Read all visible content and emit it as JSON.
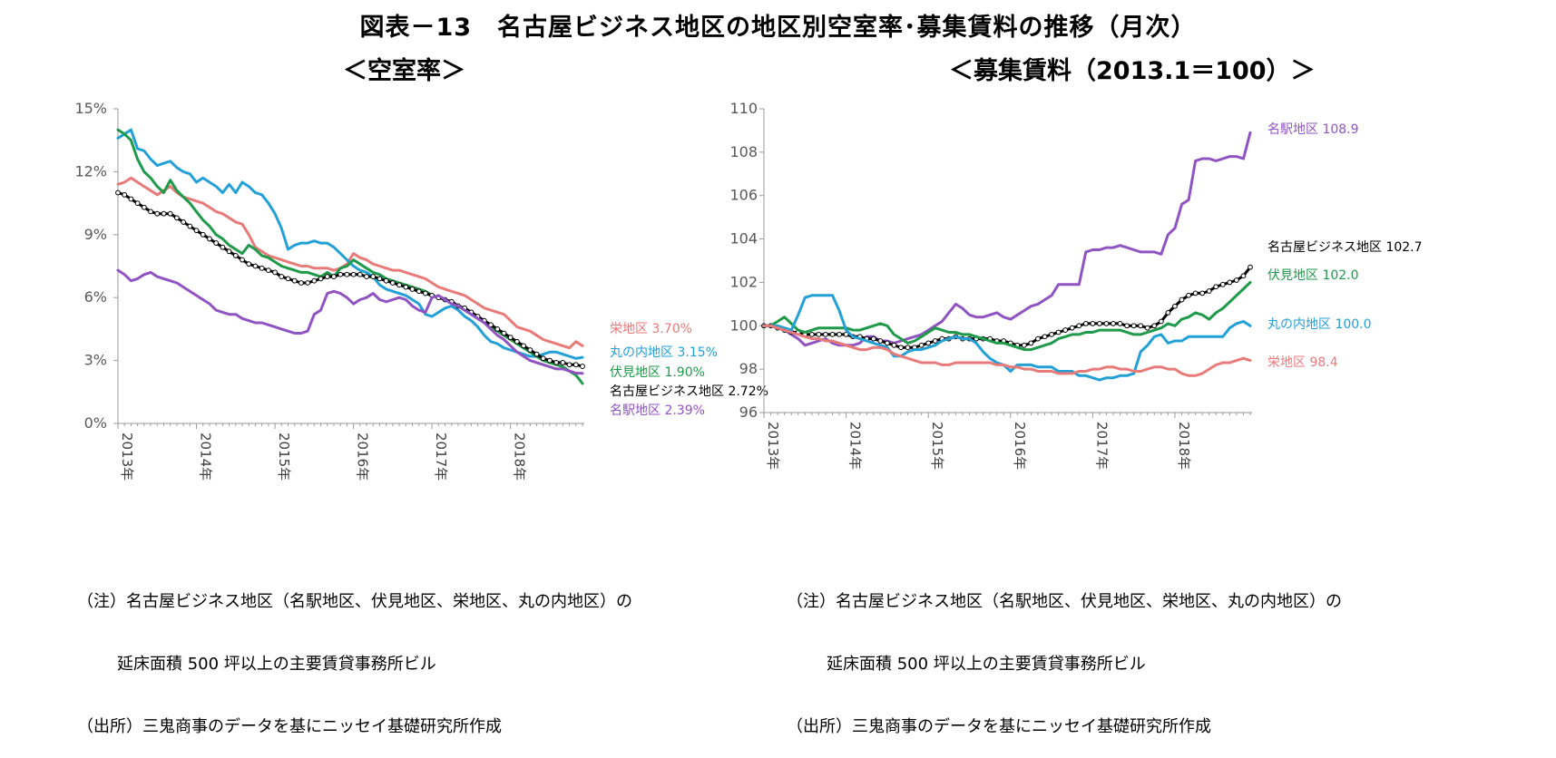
{
  "title": "図表－13　名古屋ビジネス地区の地区別空室率･募集賃料の推移（月次）",
  "left_subtitle": "＜空室率＞",
  "right_subtitle": "＜募集賃料（2013.1＝100）＞",
  "notes": {
    "line1": "（注）名古屋ビジネス地区（名駅地区、伏見地区、栄地区、丸の内地区）の",
    "line2": "延床面積 500 坪以上の主要賃貸事務所ビル",
    "line3": "（出所）三鬼商事のデータを基にニッセイ基礎研究所作成"
  },
  "chart_data": [
    {
      "type": "line",
      "title": "＜空室率＞",
      "ylim": [
        0,
        15
      ],
      "yticks": [
        "0%",
        "3%",
        "6%",
        "9%",
        "12%",
        "15%"
      ],
      "ytick_values": [
        0,
        3,
        6,
        9,
        12,
        15
      ],
      "xticks": [
        "2013年",
        "2014年",
        "2015年",
        "2016年",
        "2017年",
        "2018年"
      ],
      "n_months": 72,
      "series": [
        {
          "name": "栄地区",
          "end_label": "栄地区 3.70%",
          "color": "#e87a7a",
          "values": [
            11.4,
            11.5,
            11.7,
            11.5,
            11.3,
            11.1,
            10.9,
            11.1,
            11.3,
            11.0,
            10.8,
            10.7,
            10.6,
            10.5,
            10.3,
            10.1,
            10.0,
            9.8,
            9.6,
            9.5,
            9.0,
            8.4,
            8.2,
            8.0,
            7.9,
            7.8,
            7.7,
            7.6,
            7.5,
            7.5,
            7.4,
            7.4,
            7.4,
            7.3,
            7.4,
            7.6,
            8.1,
            7.9,
            7.8,
            7.6,
            7.5,
            7.4,
            7.3,
            7.3,
            7.2,
            7.1,
            7.0,
            6.9,
            6.7,
            6.5,
            6.4,
            6.3,
            6.2,
            6.1,
            5.9,
            5.7,
            5.5,
            5.4,
            5.3,
            5.2,
            4.9,
            4.6,
            4.5,
            4.4,
            4.2,
            4.0,
            3.9,
            3.8,
            3.7,
            3.6,
            3.9,
            3.7
          ]
        },
        {
          "name": "丸の内地区",
          "end_label": "丸の内地区 3.15%",
          "color": "#23a0d6",
          "values": [
            13.6,
            13.8,
            14.0,
            13.1,
            13.0,
            12.6,
            12.3,
            12.4,
            12.5,
            12.2,
            12.0,
            11.9,
            11.5,
            11.7,
            11.5,
            11.3,
            11.0,
            11.4,
            11.0,
            11.5,
            11.3,
            11.0,
            10.9,
            10.5,
            10.0,
            9.3,
            8.3,
            8.5,
            8.6,
            8.6,
            8.7,
            8.6,
            8.6,
            8.4,
            8.1,
            7.8,
            7.5,
            7.3,
            7.2,
            7.0,
            6.6,
            6.4,
            6.3,
            6.2,
            6.1,
            5.9,
            5.7,
            5.2,
            5.1,
            5.3,
            5.5,
            5.6,
            5.4,
            5.1,
            4.9,
            4.6,
            4.2,
            3.9,
            3.8,
            3.6,
            3.5,
            3.4,
            3.3,
            3.2,
            3.2,
            3.3,
            3.4,
            3.4,
            3.3,
            3.2,
            3.1,
            3.15
          ]
        },
        {
          "name": "伏見地区",
          "end_label": "伏見地区 1.90%",
          "color": "#1e9a4a",
          "values": [
            14.0,
            13.8,
            13.5,
            12.6,
            12.0,
            11.7,
            11.3,
            11.0,
            11.6,
            11.1,
            10.8,
            10.5,
            10.1,
            9.7,
            9.4,
            9.0,
            8.8,
            8.5,
            8.3,
            8.1,
            8.5,
            8.3,
            8.0,
            7.9,
            7.7,
            7.5,
            7.4,
            7.3,
            7.2,
            7.2,
            7.1,
            7.0,
            7.2,
            7.0,
            7.4,
            7.5,
            7.8,
            7.6,
            7.4,
            7.2,
            7.1,
            6.9,
            6.8,
            6.7,
            6.6,
            6.5,
            6.4,
            6.3,
            6.1,
            6.0,
            5.9,
            5.8,
            5.6,
            5.4,
            5.2,
            5.0,
            4.8,
            4.6,
            4.4,
            4.2,
            4.0,
            3.8,
            3.6,
            3.4,
            3.2,
            3.0,
            2.9,
            2.8,
            2.7,
            2.5,
            2.3,
            1.9
          ]
        },
        {
          "name": "名古屋ビジネス地区",
          "end_label": "名古屋ビジネス地区 2.72%",
          "color": "#000000",
          "values": [
            11.0,
            10.9,
            10.7,
            10.5,
            10.3,
            10.1,
            10.0,
            10.0,
            10.0,
            9.8,
            9.6,
            9.4,
            9.2,
            9.0,
            8.8,
            8.6,
            8.4,
            8.2,
            8.0,
            7.8,
            7.6,
            7.5,
            7.4,
            7.3,
            7.2,
            7.0,
            6.9,
            6.8,
            6.7,
            6.7,
            6.8,
            6.9,
            7.0,
            7.0,
            7.1,
            7.1,
            7.1,
            7.1,
            7.0,
            7.0,
            6.9,
            6.8,
            6.7,
            6.6,
            6.5,
            6.4,
            6.3,
            6.2,
            6.1,
            6.0,
            5.9,
            5.8,
            5.6,
            5.5,
            5.3,
            5.1,
            4.9,
            4.7,
            4.5,
            4.3,
            4.1,
            3.9,
            3.7,
            3.5,
            3.3,
            3.1,
            3.0,
            2.9,
            2.9,
            2.8,
            2.8,
            2.72
          ]
        },
        {
          "name": "名駅地区",
          "end_label": "名駅地区 2.39%",
          "color": "#9053c2",
          "values": [
            7.3,
            7.1,
            6.8,
            6.9,
            7.1,
            7.2,
            7.0,
            6.9,
            6.8,
            6.7,
            6.5,
            6.3,
            6.1,
            5.9,
            5.7,
            5.4,
            5.3,
            5.2,
            5.2,
            5.0,
            4.9,
            4.8,
            4.8,
            4.7,
            4.6,
            4.5,
            4.4,
            4.3,
            4.3,
            4.4,
            5.2,
            5.4,
            6.2,
            6.3,
            6.2,
            6.0,
            5.7,
            5.9,
            6.0,
            6.2,
            5.9,
            5.8,
            5.9,
            6.0,
            5.9,
            5.6,
            5.4,
            5.3,
            6.0,
            6.1,
            5.9,
            5.7,
            5.6,
            5.4,
            5.2,
            5.0,
            4.8,
            4.5,
            4.2,
            4.0,
            3.7,
            3.4,
            3.2,
            3.0,
            2.9,
            2.8,
            2.7,
            2.6,
            2.6,
            2.5,
            2.4,
            2.39
          ]
        }
      ]
    },
    {
      "type": "line",
      "title": "＜募集賃料（2013.1＝100）＞",
      "ylim": [
        96,
        110
      ],
      "yticks": [
        "96",
        "98",
        "100",
        "102",
        "104",
        "106",
        "108",
        "110"
      ],
      "ytick_values": [
        96,
        98,
        100,
        102,
        104,
        106,
        108,
        110
      ],
      "xticks": [
        "2013年",
        "2014年",
        "2015年",
        "2016年",
        "2017年",
        "2018年"
      ],
      "n_months": 72,
      "series": [
        {
          "name": "名駅地区",
          "end_label": "名駅地区 108.9",
          "color": "#9053c2",
          "values": [
            100.0,
            100.0,
            99.9,
            99.8,
            99.6,
            99.4,
            99.1,
            99.2,
            99.3,
            99.4,
            99.2,
            99.1,
            99.1,
            99.1,
            99.2,
            99.5,
            99.5,
            99.3,
            99.3,
            99.2,
            99.3,
            99.4,
            99.5,
            99.6,
            99.8,
            100.0,
            100.2,
            100.6,
            101.0,
            100.8,
            100.5,
            100.4,
            100.4,
            100.5,
            100.6,
            100.4,
            100.3,
            100.5,
            100.7,
            100.9,
            101.0,
            101.2,
            101.4,
            101.9,
            101.9,
            101.9,
            101.9,
            103.4,
            103.5,
            103.5,
            103.6,
            103.6,
            103.7,
            103.6,
            103.5,
            103.4,
            103.4,
            103.4,
            103.3,
            104.2,
            104.5,
            105.6,
            105.8,
            107.6,
            107.7,
            107.7,
            107.6,
            107.7,
            107.8,
            107.8,
            107.7,
            108.9
          ]
        },
        {
          "name": "名古屋ビジネス地区",
          "end_label": "名古屋ビジネス地区 102.7",
          "color": "#000000",
          "values": [
            100.0,
            100.0,
            99.9,
            99.8,
            99.7,
            99.7,
            99.6,
            99.6,
            99.6,
            99.6,
            99.6,
            99.6,
            99.6,
            99.5,
            99.5,
            99.4,
            99.4,
            99.3,
            99.2,
            99.1,
            99.0,
            99.0,
            99.0,
            99.1,
            99.2,
            99.3,
            99.4,
            99.4,
            99.5,
            99.4,
            99.4,
            99.4,
            99.4,
            99.4,
            99.3,
            99.3,
            99.2,
            99.1,
            99.1,
            99.2,
            99.4,
            99.5,
            99.6,
            99.7,
            99.8,
            99.9,
            100.0,
            100.1,
            100.1,
            100.1,
            100.1,
            100.1,
            100.1,
            100.0,
            100.0,
            100.0,
            99.9,
            100.0,
            100.2,
            100.6,
            100.9,
            101.2,
            101.4,
            101.5,
            101.5,
            101.6,
            101.8,
            101.9,
            102.0,
            102.1,
            102.3,
            102.7
          ]
        },
        {
          "name": "伏見地区",
          "end_label": "伏見地区 102.0",
          "color": "#1e9a4a",
          "values": [
            100.0,
            100.0,
            100.2,
            100.4,
            100.1,
            99.8,
            99.7,
            99.8,
            99.9,
            99.9,
            99.9,
            99.9,
            99.9,
            99.8,
            99.8,
            99.9,
            100.0,
            100.1,
            100.0,
            99.6,
            99.4,
            99.2,
            99.3,
            99.5,
            99.7,
            99.9,
            99.8,
            99.7,
            99.7,
            99.6,
            99.6,
            99.5,
            99.4,
            99.3,
            99.2,
            99.2,
            99.1,
            99.0,
            98.9,
            98.9,
            99.0,
            99.1,
            99.2,
            99.4,
            99.5,
            99.6,
            99.6,
            99.7,
            99.7,
            99.8,
            99.8,
            99.8,
            99.8,
            99.7,
            99.6,
            99.6,
            99.7,
            99.8,
            99.9,
            100.1,
            100.0,
            100.3,
            100.4,
            100.6,
            100.5,
            100.3,
            100.6,
            100.8,
            101.1,
            101.4,
            101.7,
            102.0
          ]
        },
        {
          "name": "丸の内地区",
          "end_label": "丸の内地区 100.0",
          "color": "#23a0d6",
          "values": [
            100.0,
            100.0,
            100.0,
            99.9,
            99.8,
            100.5,
            101.3,
            101.4,
            101.4,
            101.4,
            101.4,
            100.7,
            99.8,
            99.5,
            99.4,
            99.3,
            99.2,
            99.1,
            99.0,
            98.6,
            98.6,
            98.8,
            98.9,
            98.9,
            99.0,
            99.1,
            99.3,
            99.4,
            99.5,
            99.4,
            99.4,
            99.2,
            98.8,
            98.5,
            98.3,
            98.2,
            97.9,
            98.2,
            98.2,
            98.2,
            98.1,
            98.1,
            98.1,
            97.9,
            97.9,
            97.9,
            97.7,
            97.7,
            97.6,
            97.5,
            97.6,
            97.6,
            97.7,
            97.7,
            97.8,
            98.8,
            99.1,
            99.5,
            99.6,
            99.2,
            99.3,
            99.3,
            99.5,
            99.5,
            99.5,
            99.5,
            99.5,
            99.5,
            99.9,
            100.1,
            100.2,
            100.0
          ]
        },
        {
          "name": "栄地区",
          "end_label": "栄地区 98.4",
          "color": "#e87a7a",
          "values": [
            100.0,
            100.0,
            99.9,
            99.8,
            99.7,
            99.6,
            99.5,
            99.4,
            99.4,
            99.3,
            99.3,
            99.2,
            99.1,
            99.0,
            98.9,
            98.9,
            99.0,
            99.0,
            98.9,
            98.7,
            98.6,
            98.5,
            98.4,
            98.3,
            98.3,
            98.3,
            98.2,
            98.2,
            98.3,
            98.3,
            98.3,
            98.3,
            98.3,
            98.3,
            98.2,
            98.2,
            98.1,
            98.1,
            98.0,
            98.0,
            97.9,
            97.9,
            97.9,
            97.8,
            97.8,
            97.8,
            97.9,
            97.9,
            98.0,
            98.0,
            98.1,
            98.1,
            98.0,
            98.0,
            97.9,
            97.9,
            98.0,
            98.1,
            98.1,
            98.0,
            98.0,
            97.8,
            97.7,
            97.7,
            97.8,
            98.0,
            98.2,
            98.3,
            98.3,
            98.4,
            98.5,
            98.4
          ]
        }
      ]
    }
  ]
}
